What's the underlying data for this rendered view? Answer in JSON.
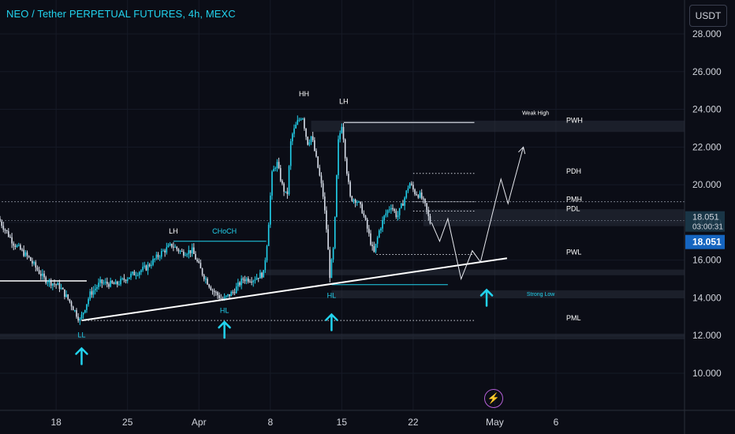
{
  "header": {
    "title": "NEO / Tether PERPETUAL FUTURES, 4h, MEXC",
    "currency": "USDT"
  },
  "colors": {
    "background": "#0b0d16",
    "bull": "#22d3ee",
    "bear": "#d8dee9",
    "accent": "#22d3ee",
    "text": "#d1d4dc",
    "price_box": "#1565c0",
    "countdown_box": "#1b3a4b",
    "icon": "#b45fd6"
  },
  "icons": {
    "replay": "lightning-icon"
  },
  "price_tag": {
    "price": "18.051",
    "countdown": "03:00:31",
    "price2": "18.051"
  },
  "chart_data": {
    "type": "candlestick",
    "title": "NEO / Tether PERPETUAL FUTURES, 4h, MEXC",
    "ylim": [
      9.0,
      29.0
    ],
    "y_ticks": [
      "28.000",
      "26.000",
      "24.000",
      "22.000",
      "20.000",
      "18.000",
      "16.000",
      "14.000",
      "12.000",
      "10.000"
    ],
    "x_ticks": [
      {
        "label": "18",
        "day": 18
      },
      {
        "label": "25",
        "day": 25
      },
      {
        "label": "Apr",
        "day": 32
      },
      {
        "label": "8",
        "day": 39
      },
      {
        "label": "15",
        "day": 46
      },
      {
        "label": "22",
        "day": 53
      },
      {
        "label": "May",
        "day": 61
      },
      {
        "label": "6",
        "day": 67
      }
    ],
    "price_path": [
      [
        12.5,
        18.2
      ],
      [
        14,
        16.9
      ],
      [
        15.5,
        16.1
      ],
      [
        17,
        15.0
      ],
      [
        18.5,
        14.6
      ],
      [
        19.5,
        13.8
      ],
      [
        20.5,
        12.8
      ],
      [
        21.5,
        14.2
      ],
      [
        22.5,
        14.8
      ],
      [
        24,
        14.7
      ],
      [
        25.5,
        15.2
      ],
      [
        27,
        15.6
      ],
      [
        28.5,
        16.4
      ],
      [
        29.5,
        16.8
      ],
      [
        30.5,
        16.4
      ],
      [
        31.5,
        16.5
      ],
      [
        32.5,
        15.3
      ],
      [
        33.5,
        14.4
      ],
      [
        34.5,
        13.9
      ],
      [
        35.5,
        14.3
      ],
      [
        36.5,
        15.0
      ],
      [
        37.5,
        15.0
      ],
      [
        38.5,
        15.3
      ],
      [
        38.9,
        17.2
      ],
      [
        39.3,
        20.5
      ],
      [
        39.8,
        21.2
      ],
      [
        40.3,
        20.0
      ],
      [
        40.8,
        19.3
      ],
      [
        41.2,
        22.5
      ],
      [
        41.8,
        23.3
      ],
      [
        42.3,
        23.7
      ],
      [
        42.8,
        22.2
      ],
      [
        43.2,
        22.6
      ],
      [
        43.8,
        21.0
      ],
      [
        44.3,
        19.6
      ],
      [
        44.7,
        17.5
      ],
      [
        45.0,
        15.2
      ],
      [
        45.4,
        16.8
      ],
      [
        45.8,
        22.2
      ],
      [
        46.2,
        23.3
      ],
      [
        46.6,
        21.0
      ],
      [
        47.0,
        19.3
      ],
      [
        47.6,
        19.2
      ],
      [
        48.2,
        18.6
      ],
      [
        48.8,
        17.4
      ],
      [
        49.3,
        16.3
      ],
      [
        49.8,
        17.5
      ],
      [
        50.4,
        18.4
      ],
      [
        51.0,
        18.9
      ],
      [
        51.6,
        18.3
      ],
      [
        52.2,
        19.1
      ],
      [
        52.8,
        20.1
      ],
      [
        53.3,
        19.6
      ],
      [
        53.9,
        19.4
      ],
      [
        54.4,
        18.8
      ],
      [
        54.8,
        18.0
      ]
    ],
    "projection": [
      [
        54.8,
        18.0
      ],
      [
        55.6,
        17.0
      ],
      [
        56.4,
        18.2
      ],
      [
        57.7,
        15.0
      ],
      [
        58.8,
        16.5
      ],
      [
        59.6,
        15.9
      ],
      [
        61.6,
        20.3
      ],
      [
        62.3,
        19.0
      ],
      [
        63.8,
        22.0
      ]
    ],
    "trendline": [
      [
        20.5,
        12.8
      ],
      [
        62.2,
        16.1
      ]
    ],
    "hlines": [
      {
        "from": 0,
        "to": 21.0,
        "y": 14.9,
        "color": "#ffffff",
        "style": "solid",
        "width": 1.5
      },
      {
        "from": 0,
        "to": 80,
        "y": 19.1,
        "color": "#9aa0ae",
        "style": "dotted",
        "width": 1
      },
      {
        "from": 0,
        "to": 80,
        "y": 18.1,
        "color": "#6a7080",
        "style": "dotted",
        "width": 1
      },
      {
        "from": 29.5,
        "to": 38.6,
        "y": 17.0,
        "color": "#22d3ee",
        "style": "solid",
        "width": 1
      },
      {
        "from": 46.2,
        "to": 59.0,
        "y": 23.3,
        "color": "#cfd3dc",
        "style": "solid",
        "width": 1.2
      },
      {
        "from": 53.0,
        "to": 59.0,
        "y": 20.6,
        "color": "#cfd3dc",
        "style": "dotted",
        "width": 1
      },
      {
        "from": 53.0,
        "to": 59.0,
        "y": 19.1,
        "color": "#cfd3dc",
        "style": "dotted",
        "width": 1
      },
      {
        "from": 53.0,
        "to": 59.0,
        "y": 18.6,
        "color": "#cfd3dc",
        "style": "dotted",
        "width": 1
      },
      {
        "from": 49.4,
        "to": 59.0,
        "y": 16.3,
        "color": "#cfd3dc",
        "style": "dotted",
        "width": 1
      },
      {
        "from": 45.0,
        "to": 56.4,
        "y": 14.7,
        "color": "#22d3ee",
        "style": "solid",
        "width": 1
      },
      {
        "from": 20.5,
        "to": 59.0,
        "y": 12.8,
        "color": "#cfd3dc",
        "style": "dotted",
        "width": 1
      }
    ],
    "zones": [
      {
        "from": 43.0,
        "to": 80,
        "y1": 23.4,
        "y2": 22.8
      },
      {
        "from": 38.0,
        "to": 80,
        "y1": 15.5,
        "y2": 15.2
      },
      {
        "from": 45.0,
        "to": 80,
        "y1": 14.4,
        "y2": 14.0
      },
      {
        "from": 0,
        "to": 80,
        "y1": 12.1,
        "y2": 11.8
      },
      {
        "from": 54.0,
        "to": 80,
        "y1": 18.7,
        "y2": 17.8
      }
    ],
    "annotations": [
      {
        "text": "HH",
        "x": 42.3,
        "y": 24.7,
        "color": "#ffffff",
        "size": 9
      },
      {
        "text": "LH",
        "x": 46.2,
        "y": 24.3,
        "color": "#ffffff",
        "size": 9
      },
      {
        "text": "LH",
        "x": 29.5,
        "y": 17.4,
        "color": "#ffffff",
        "size": 9
      },
      {
        "text": "CHoCH",
        "x": 34.5,
        "y": 17.4,
        "color": "#22d3ee",
        "size": 9
      },
      {
        "text": "HL",
        "x": 34.5,
        "y": 13.2,
        "color": "#22d3ee",
        "size": 9
      },
      {
        "text": "HL",
        "x": 45.0,
        "y": 14.0,
        "color": "#22d3ee",
        "size": 9
      },
      {
        "text": "LL",
        "x": 20.5,
        "y": 11.9,
        "color": "#22d3ee",
        "size": 9
      },
      {
        "text": "Weak High",
        "x": 65.0,
        "y": 23.7,
        "color": "#ffffff",
        "size": 7
      },
      {
        "text": "Strong Low",
        "x": 65.5,
        "y": 14.1,
        "color": "#22d3ee",
        "size": 7
      },
      {
        "text": "PWH",
        "x": 68.0,
        "y": 23.3,
        "color": "#ffffff",
        "size": 9,
        "anchor": "start"
      },
      {
        "text": "PDH",
        "x": 68.0,
        "y": 20.6,
        "color": "#ffffff",
        "size": 9,
        "anchor": "start"
      },
      {
        "text": "PMH",
        "x": 68.0,
        "y": 19.1,
        "color": "#ffffff",
        "size": 9,
        "anchor": "start"
      },
      {
        "text": "PDL",
        "x": 68.0,
        "y": 18.6,
        "color": "#ffffff",
        "size": 9,
        "anchor": "start"
      },
      {
        "text": "PWL",
        "x": 68.0,
        "y": 16.3,
        "color": "#ffffff",
        "size": 9,
        "anchor": "start"
      },
      {
        "text": "PML",
        "x": 68.0,
        "y": 12.8,
        "color": "#ffffff",
        "size": 9,
        "anchor": "start"
      }
    ],
    "up_arrows": [
      [
        20.5,
        10.9
      ],
      [
        34.5,
        12.3
      ],
      [
        45.0,
        12.7
      ],
      [
        60.2,
        14.0
      ]
    ]
  }
}
